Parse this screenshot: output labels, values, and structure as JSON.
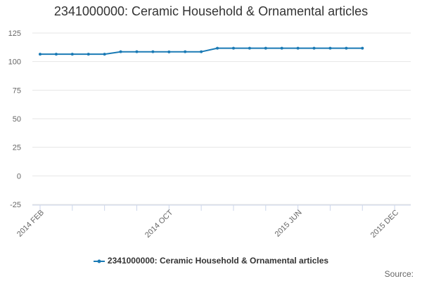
{
  "chart_data": {
    "type": "line",
    "title": "2341000000: Ceramic Household & Ornamental articles",
    "xlabel": "",
    "ylabel": "",
    "ylim": [
      -25,
      125
    ],
    "y_ticks": [
      -25,
      0,
      25,
      50,
      75,
      100,
      125
    ],
    "x_tick_labels": [
      "2014 FEB",
      "2014 OCT",
      "2015 JUN",
      "2015 DEC"
    ],
    "x_tick_label_months": [
      "2014-02",
      "2014-10",
      "2015-06",
      "2015-12"
    ],
    "x_range": [
      "2014-02",
      "2016-01"
    ],
    "grid": true,
    "legend_position": "bottom",
    "x": [
      "2014-02",
      "2014-03",
      "2014-04",
      "2014-05",
      "2014-06",
      "2014-07",
      "2014-08",
      "2014-09",
      "2014-10",
      "2014-11",
      "2014-12",
      "2015-01",
      "2015-02",
      "2015-03",
      "2015-04",
      "2015-05",
      "2015-06",
      "2015-07",
      "2015-08",
      "2015-09",
      "2015-10"
    ],
    "series": [
      {
        "name": "2341000000: Ceramic Household & Ornamental articles",
        "color": "#1a7ab5",
        "values": [
          106.5,
          106.5,
          106.5,
          106.5,
          106.5,
          108.6,
          108.6,
          108.6,
          108.5,
          108.6,
          108.6,
          111.7,
          111.7,
          111.7,
          111.7,
          111.7,
          111.7,
          111.7,
          111.7,
          111.7,
          111.7
        ]
      }
    ]
  },
  "legend": {
    "label": "2341000000: Ceramic Household & Ornamental articles"
  },
  "credits": {
    "label": "Source:"
  }
}
